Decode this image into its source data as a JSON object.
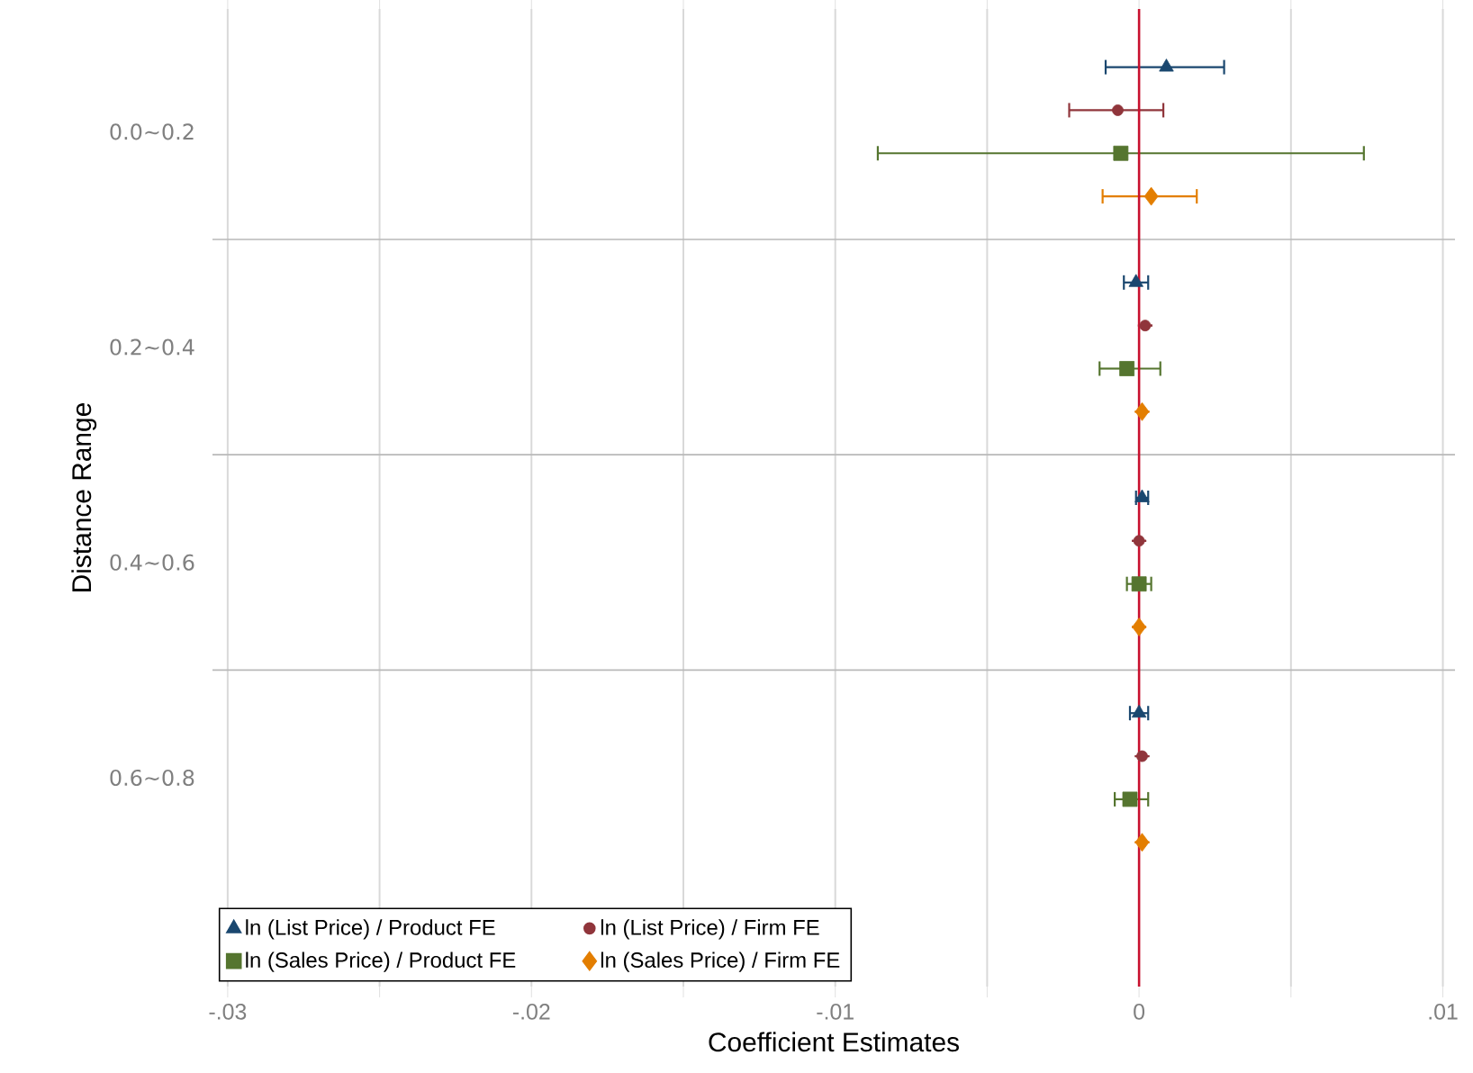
{
  "chart_data": {
    "type": "scatter",
    "orientation": "horizontal",
    "xlabel": "Coefficient Estimates",
    "ylabel": "Distance Range",
    "categories": [
      "0.0∼0.2",
      "0.2∼0.4",
      "0.4∼0.6",
      "0.6∼0.8"
    ],
    "xlim": [
      -0.0305,
      0.0104
    ],
    "xticks": [
      {
        "value": -0.03,
        "label": "-.03"
      },
      {
        "value": -0.025,
        "label": null
      },
      {
        "value": -0.02,
        "label": "-.02"
      },
      {
        "value": -0.015,
        "label": null
      },
      {
        "value": -0.01,
        "label": "-.01"
      },
      {
        "value": -0.005,
        "label": null
      },
      {
        "value": 0,
        "label": "0"
      },
      {
        "value": 0.005,
        "label": null
      },
      {
        "value": 0.01,
        "label": ".01"
      }
    ],
    "grid": true,
    "legend": "bottom left",
    "ref_lines": [
      {
        "axis": "x",
        "value": 0,
        "color": "#c8102e"
      }
    ],
    "series": [
      {
        "name": "ln (List Price) / Product FE",
        "color": "#1a476f",
        "marker": "triangle",
        "values": [
          0.0009,
          -0.0001,
          0.0001,
          0.0
        ],
        "errors": [
          [
            -0.0011,
            0.0028
          ],
          [
            -0.0005,
            0.0003
          ],
          [
            -0.0001,
            0.0003
          ],
          [
            -0.0003,
            0.0003
          ]
        ]
      },
      {
        "name": "ln (List Price) / Firm FE",
        "color": "#90353b",
        "marker": "circle",
        "values": [
          -0.0007,
          0.0002,
          0.0,
          0.0001
        ],
        "errors": [
          [
            -0.0023,
            0.0008
          ],
          null,
          null,
          null
        ]
      },
      {
        "name": "ln (Sales Price) / Product FE",
        "color": "#55752f",
        "marker": "square",
        "values": [
          -0.0006,
          -0.0004,
          0.0,
          -0.0003
        ],
        "errors": [
          [
            -0.0086,
            0.0074
          ],
          [
            -0.0013,
            0.0007
          ],
          [
            -0.0004,
            0.0004
          ],
          [
            -0.0008,
            0.0003
          ]
        ]
      },
      {
        "name": "ln (Sales Price) / Firm FE",
        "color": "#e37e00",
        "marker": "diamond",
        "values": [
          0.0004,
          0.0001,
          0.0,
          0.0001
        ],
        "errors": [
          [
            -0.0012,
            0.0019
          ],
          null,
          null,
          null
        ]
      }
    ]
  }
}
